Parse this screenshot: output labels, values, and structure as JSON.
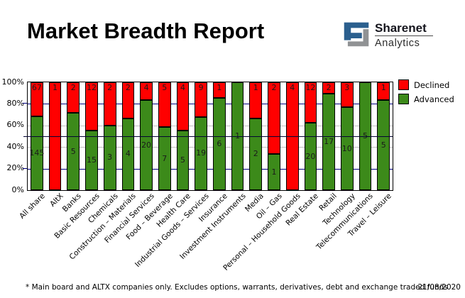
{
  "header": {
    "title": "Market Breadth Report",
    "logo": {
      "brand": "Sharenet",
      "sub": "Analytics",
      "blue": "#2B5F8E",
      "gray": "#909294"
    }
  },
  "chart_data": {
    "type": "bar",
    "subtype": "stacked-percent",
    "title": "Market Breadth Report",
    "categories": [
      "All share",
      "AltX",
      "Banks",
      "Basic Resources",
      "Chemicals",
      "Construction – Materials",
      "Financial Services",
      "Food – Beverage",
      "Health Care",
      "Industrial Goods – Services",
      "Insurance",
      "Investment Instruments",
      "Media",
      "Oil – Gas",
      "Personal – Household Goods",
      "Real Estate",
      "Retail",
      "Technology",
      "Telecommunications",
      "Travel – Leisure"
    ],
    "series": [
      {
        "name": "Declined",
        "color": "#FF0000",
        "values": [
          67,
          1,
          2,
          12,
          2,
          2,
          4,
          5,
          4,
          9,
          1,
          0,
          1,
          2,
          4,
          12,
          2,
          3,
          0,
          1
        ]
      },
      {
        "name": "Advanced",
        "color": "#3C8A1A",
        "values": [
          145,
          0,
          5,
          15,
          3,
          4,
          20,
          7,
          5,
          19,
          6,
          1,
          2,
          1,
          0,
          20,
          17,
          10,
          5,
          5
        ]
      }
    ],
    "y_ticks": [
      "100%",
      "80%",
      "60%",
      "40%",
      "20%",
      "0%"
    ],
    "ylim": [
      0,
      100
    ],
    "reference_line_pct": 50,
    "gridlines": {
      "navy_pcts": [
        80,
        20
      ],
      "gray_pcts": [
        60,
        40
      ]
    },
    "colors": {
      "grid_navy": "#00007E",
      "grid_gray": "#BFBFBF",
      "refline": "#050533",
      "bar_border": "#000000"
    },
    "legend_position": "top-right"
  },
  "legend": {
    "items": [
      {
        "label": "Declined",
        "color": "#FF0000"
      },
      {
        "label": "Advanced",
        "color": "#3C8A1A"
      }
    ]
  },
  "footer": {
    "note": "* Main board and ALTX companies only. Excludes options, warrants, derivatives, debt and exchange traded funds",
    "date": "21/08/2020"
  }
}
